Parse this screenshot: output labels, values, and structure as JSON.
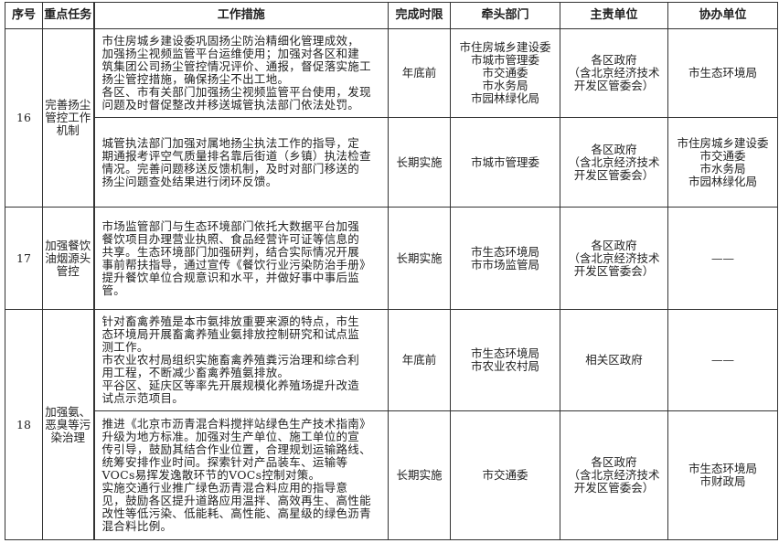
{
  "headers": [
    "序号",
    "重点任务",
    "工作措施",
    "完成时限",
    "牵头部门",
    "主责单位",
    "协办单位"
  ],
  "rows": [
    {
      "no": "16",
      "task": "完善扬尘\n管控工作\n机制",
      "items": [
        {
          "measure": "市住房城乡建设委巩固扬尘防治精细化管理成效，\n加强扬尘视频监管平台运维使用；加强对各区和建\n筑集团公司扬尘管控情况评价、通报，督促落实施工\n扬尘管控措施，确保扬尘不出工地。\n各区、市有关部门加强扬尘视频监管平台使用，发现\n问题及时督促整改并移送城管执法部门依法处罚。",
          "deadline": "年底前",
          "lead": "市住房城乡建设委\n市城市管理委\n市交通委\n市水务局\n市园林绿化局",
          "main": "各区政府\n（含北京经济技术\n开发区管委会）",
          "assist": "市生态环境局"
        },
        {
          "measure": "城管执法部门加强对属地扬尘执法工作的指导，定\n期通报考评空气质量排名靠后街道（乡镇）执法检查\n情况。完善问题移送反馈机制，及时对部门移送的\n扬尘问题查处结果进行闭环反馈。",
          "deadline": "长期实施",
          "lead": "市城市管理委",
          "main": "各区政府\n（含北京经济技术\n开发区管委会）",
          "assist": "市住房城乡建设委\n市交通委\n市水务局\n市园林绿化局"
        }
      ]
    },
    {
      "no": "17",
      "task": "加强餐饮\n油烟源头\n管控",
      "items": [
        {
          "measure": "市场监管部门与生态环境部门依托大数据平台加强\n餐饮项目办理营业执照、食品经营许可证等信息的\n共享。生态环境部门加强研判，结合实际情况开展\n事前帮扶指导，通过宣传《餐饮行业污染防治手册》\n提升餐饮单位合规意识和水平，并做好事中事后监\n管。",
          "deadline": "长期实施",
          "lead": "市生态环境局\n市市场监管局",
          "main": "各区政府\n（含北京经济技术\n开发区管委会）",
          "assist": "——"
        }
      ]
    },
    {
      "no": "18",
      "task": "加强氨、\n恶臭等污\n染治理",
      "items": [
        {
          "measure": "针对畜禽养殖是本市氨排放重要来源的特点，市生\n态环境局开展畜禽养殖业氨排放控制研究和试点监\n测工作。\n市农业农村局组织实施畜禽养殖粪污治理和综合利\n用工程，不断减少畜禽养殖氨排放。\n平谷区、延庆区等率先开展规模化养殖场提升改造\n试点示范项目。",
          "deadline": "年底前",
          "lead": "市生态环境局\n市农业农村局",
          "main": "相关区政府",
          "assist": "——"
        },
        {
          "measure": "推进《北京市沥青混合料搅拌站绿色生产技术指南》\n升级为地方标准。加强对生产单位、施工单位的宣\n传引导，鼓励其结合作业位置，合理规划运输路线、\n统筹安排作业时间。探索针对产品装车、运输等\nVOCs易挥发逸散环节的VOCs控制对策。\n实施交通行业推广绿色沥青混合料应用的指导意\n见，鼓励各区提升道路应用温拌、高效再生、高性能\n改性等低污染、低能耗、高性能、高星级的绿色沥青\n混合料比例。",
          "deadline": "长期实施",
          "lead": "市交通委",
          "main": "各区政府\n（含北京经济技术\n开发区管委会）",
          "assist": "市生态环境局\n市财政局"
        }
      ]
    }
  ]
}
